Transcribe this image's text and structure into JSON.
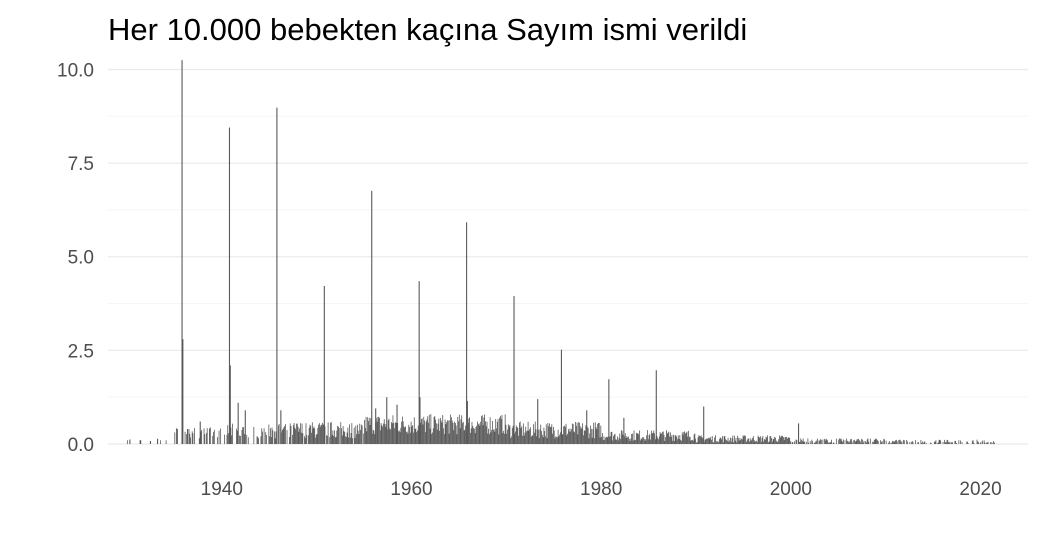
{
  "chart_data": {
    "type": "bar",
    "title": "Her 10.000 bebekten kaçına Sayım ismi verildi",
    "xlabel": "",
    "ylabel": "",
    "xlim": [
      1928,
      2025
    ],
    "ylim": [
      0,
      10.2
    ],
    "x_ticks": [
      1940,
      1960,
      1980,
      2000,
      2020
    ],
    "x_tick_labels": [
      "1940",
      "1960",
      "1980",
      "2000",
      "2020"
    ],
    "y_ticks": [
      0,
      2.5,
      5,
      7.5,
      10
    ],
    "y_tick_labels": [
      "0.0",
      "2.5",
      "5.0",
      "7.5",
      "10.0"
    ],
    "grid": "horizontal",
    "colors": {
      "bar": "#595959",
      "grid_major": "#ebebeb",
      "grid_minor": "#f5f5f5",
      "background": "#ffffff"
    },
    "series": [
      {
        "name": "",
        "points": [
          {
            "x": "1930-04-01",
            "y": 0.12
          },
          {
            "x": "1931-05-01",
            "y": 0.1
          },
          {
            "x": "1932-06-01",
            "y": 0.08
          },
          {
            "x": "1933-03-01",
            "y": 0.14
          },
          {
            "x": "1935-04-01",
            "y": 0.4
          },
          {
            "x": "1935-10-01",
            "y": 10.25
          },
          {
            "x": "1935-11-01",
            "y": 2.8
          },
          {
            "x": "1936-05-01",
            "y": 0.4
          },
          {
            "x": "1937-09-01",
            "y": 0.6
          },
          {
            "x": "1938-09-01",
            "y": 0.4
          },
          {
            "x": "1940-10-01",
            "y": 8.45
          },
          {
            "x": "1940-11-01",
            "y": 2.1
          },
          {
            "x": "1941-09-01",
            "y": 1.1
          },
          {
            "x": "1942-06-01",
            "y": 0.9
          },
          {
            "x": "1945-10-01",
            "y": 8.98
          },
          {
            "x": "1946-03-01",
            "y": 0.9
          },
          {
            "x": "1950-10-01",
            "y": 4.22
          },
          {
            "x": "1955-10-01",
            "y": 6.76
          },
          {
            "x": "1956-03-01",
            "y": 0.95
          },
          {
            "x": "1957-05-01",
            "y": 1.25
          },
          {
            "x": "1958-06-01",
            "y": 1.05
          },
          {
            "x": "1960-10-01",
            "y": 4.35
          },
          {
            "x": "1960-11-01",
            "y": 1.25
          },
          {
            "x": "1965-10-01",
            "y": 5.92
          },
          {
            "x": "1965-11-01",
            "y": 1.15
          },
          {
            "x": "1970-10-01",
            "y": 3.95
          },
          {
            "x": "1973-04-01",
            "y": 1.2
          },
          {
            "x": "1975-10-01",
            "y": 2.52
          },
          {
            "x": "1978-06-01",
            "y": 0.9
          },
          {
            "x": "1980-10-01",
            "y": 1.73
          },
          {
            "x": "1982-05-01",
            "y": 0.7
          },
          {
            "x": "1985-10-01",
            "y": 1.97
          },
          {
            "x": "1990-10-01",
            "y": 1.0
          },
          {
            "x": "2000-10-01",
            "y": 0.55
          }
        ]
      }
    ]
  }
}
